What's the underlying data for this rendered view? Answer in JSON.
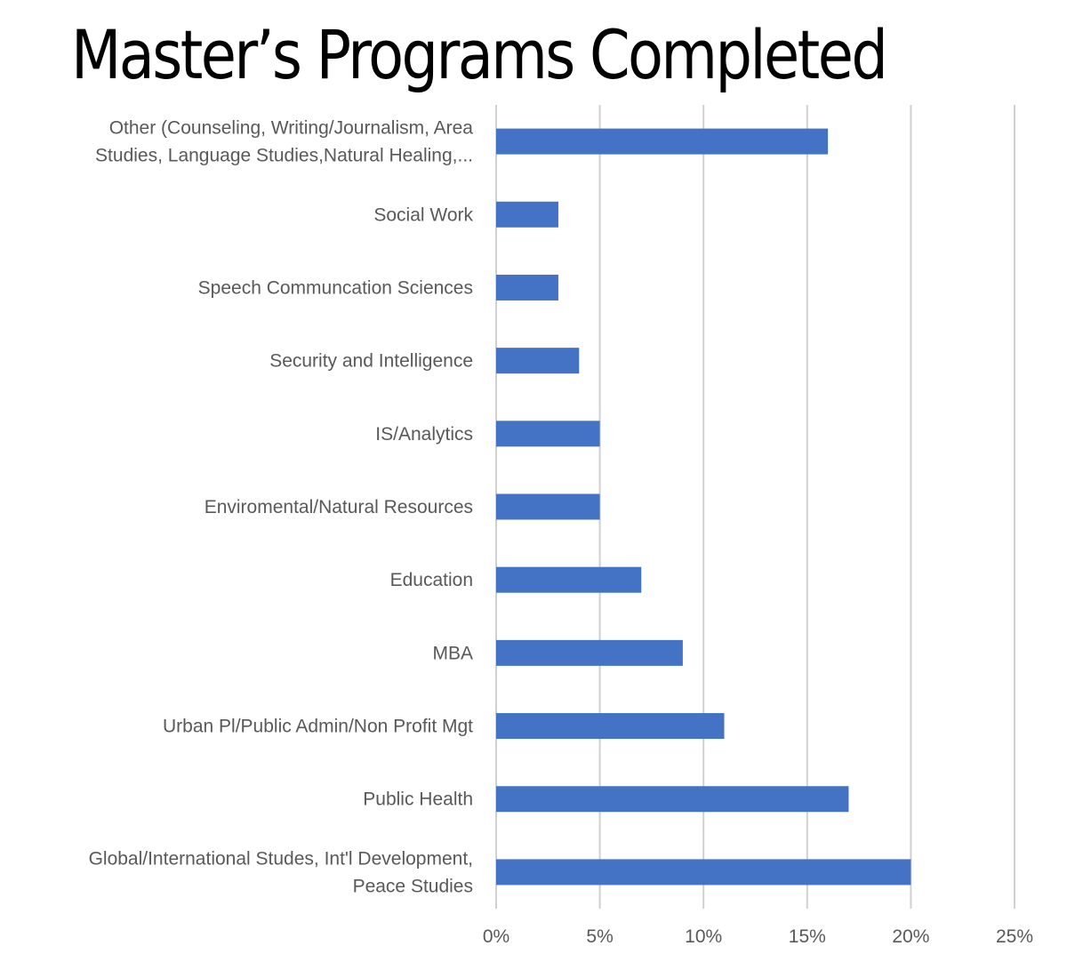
{
  "chart_data": {
    "type": "bar",
    "orientation": "horizontal",
    "title": "Master’s Programs Completed",
    "categories": [
      [
        "Other (Counseling, Writing/Journalism, Area",
        "Studies, Language Studies,Natural Healing,..."
      ],
      [
        "Social Work"
      ],
      [
        "Speech Communcation Sciences"
      ],
      [
        "Security and Intelligence"
      ],
      [
        "IS/Analytics"
      ],
      [
        "Enviromental/Natural Resources"
      ],
      [
        "Education"
      ],
      [
        "MBA"
      ],
      [
        "Urban Pl/Public Admin/Non Profit Mgt"
      ],
      [
        "Public Health"
      ],
      [
        "Global/International Studes, Int'l Development,",
        "Peace Studies"
      ]
    ],
    "values": [
      16,
      3,
      3,
      4,
      5,
      5,
      7,
      9,
      11,
      17,
      20
    ],
    "xlim": [
      0,
      25
    ],
    "xticks": [
      0,
      5,
      10,
      15,
      20,
      25
    ],
    "xtick_labels": [
      "0%",
      "5%",
      "10%",
      "15%",
      "20%",
      "25%"
    ],
    "xlabel": "",
    "ylabel": "",
    "grid": "vertical",
    "legend": "none",
    "colors": {
      "bar": "#4472C4",
      "grid": "#D0D0D0",
      "text": "#595959",
      "title": "#000000"
    }
  }
}
